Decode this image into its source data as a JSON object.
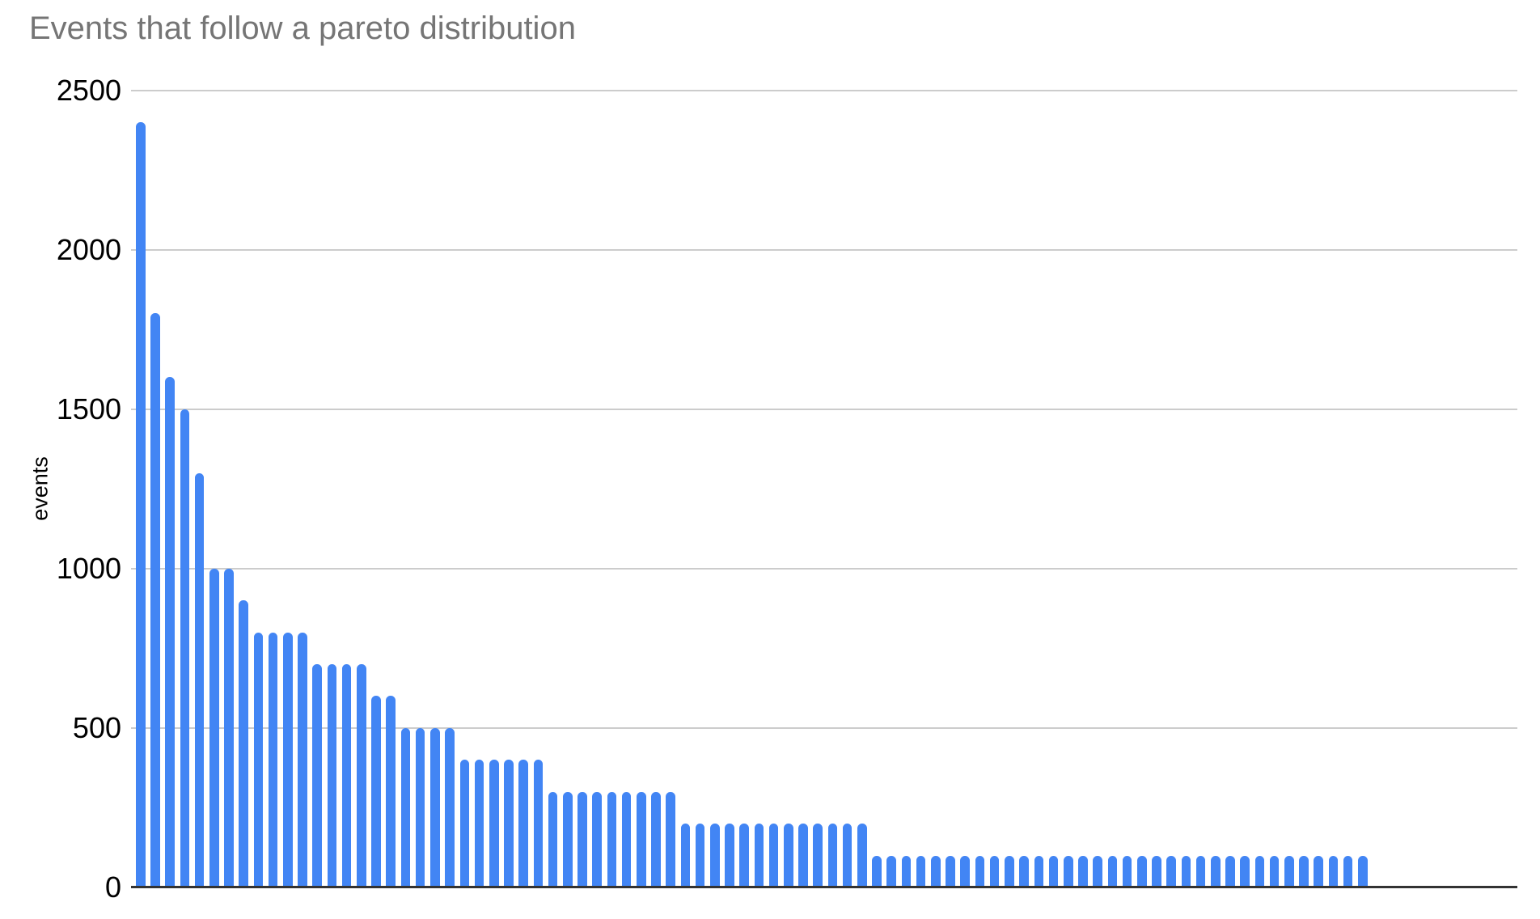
{
  "title": "Events that follow a pareto distribution",
  "y_axis": {
    "title": "events",
    "ticks": [
      {
        "label": "2500",
        "value": 2500
      },
      {
        "label": "2000",
        "value": 2000
      },
      {
        "label": "1500",
        "value": 1500
      },
      {
        "label": "1000",
        "value": 1000
      },
      {
        "label": "500",
        "value": 500
      },
      {
        "label": "0",
        "value": 0
      }
    ]
  },
  "colors": {
    "bar": "#4285f4",
    "gridline": "#cccccc",
    "axis_line": "#333333",
    "title_text": "#757575",
    "tick_text": "#000000"
  },
  "chart_data": {
    "type": "bar",
    "title": "Events that follow a pareto distribution",
    "xlabel": "",
    "ylabel": "events",
    "ylim": [
      0,
      2500
    ],
    "grid": "horizontal",
    "legend": "none",
    "x_tick_labels": "none",
    "values": [
      2400,
      1800,
      1600,
      1500,
      1300,
      1000,
      1000,
      900,
      800,
      800,
      800,
      800,
      700,
      700,
      700,
      700,
      600,
      600,
      500,
      500,
      500,
      500,
      400,
      400,
      400,
      400,
      400,
      400,
      300,
      300,
      300,
      300,
      300,
      300,
      300,
      300,
      300,
      200,
      200,
      200,
      200,
      200,
      200,
      200,
      200,
      200,
      200,
      200,
      200,
      200,
      100,
      100,
      100,
      100,
      100,
      100,
      100,
      100,
      100,
      100,
      100,
      100,
      100,
      100,
      100,
      100,
      100,
      100,
      100,
      100,
      100,
      100,
      100,
      100,
      100,
      100,
      100,
      100,
      100,
      100,
      100,
      100,
      100,
      100
    ]
  }
}
